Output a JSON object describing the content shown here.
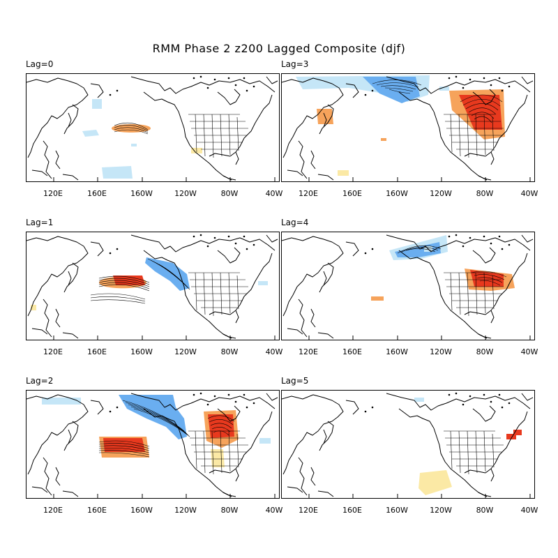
{
  "title": "RMM Phase 2 z200 Lagged Composite (djf)",
  "colors": {
    "positive_light": "#f6a35b",
    "positive_strong": "#e8391e",
    "negative_light": "#c5e6f7",
    "negative_strong": "#6aaef0",
    "weak_positive": "#fbe9a5",
    "coast": "#000000"
  },
  "chart_data": [
    {
      "type": "map",
      "panel": "Lag=0",
      "lag": 0,
      "xticks": [
        "120E",
        "160E",
        "160W",
        "120W",
        "80W",
        "40W"
      ],
      "anomalies": [
        {
          "sign": "positive",
          "strength": "light",
          "region": "central North Pacific (~165E-180, 30N)"
        },
        {
          "sign": "negative",
          "strength": "light",
          "region": "western Pacific subtropics"
        },
        {
          "sign": "weak_positive",
          "strength": "light",
          "region": "eastern Pacific subtropics"
        }
      ]
    },
    {
      "type": "map",
      "panel": "Lag=1",
      "lag": 1,
      "xticks": [
        "120E",
        "160E",
        "160W",
        "120W",
        "80W",
        "40W"
      ],
      "anomalies": [
        {
          "sign": "positive",
          "strength": "strong",
          "region": "central North Pacific (~160E-170W, 35N)"
        },
        {
          "sign": "negative",
          "strength": "strong",
          "region": "Gulf of Alaska to western North America"
        },
        {
          "sign": "negative",
          "strength": "light",
          "region": "western Atlantic"
        }
      ]
    },
    {
      "type": "map",
      "panel": "Lag=2",
      "lag": 2,
      "xticks": [
        "120E",
        "160E",
        "160W",
        "120W",
        "80W",
        "40W"
      ],
      "anomalies": [
        {
          "sign": "positive",
          "strength": "strong",
          "region": "central North Pacific (~160E-160W, 30N)"
        },
        {
          "sign": "negative",
          "strength": "strong",
          "region": "Alaska to western North America"
        },
        {
          "sign": "positive",
          "strength": "strong",
          "region": "Great Lakes / eastern North America"
        },
        {
          "sign": "negative",
          "strength": "light",
          "region": "western Atlantic"
        }
      ]
    },
    {
      "type": "map",
      "panel": "Lag=3",
      "lag": 3,
      "xticks": [
        "120E",
        "160E",
        "160W",
        "120W",
        "80W",
        "40W"
      ],
      "anomalies": [
        {
          "sign": "negative",
          "strength": "strong",
          "region": "Bering Sea / Alaska"
        },
        {
          "sign": "positive",
          "strength": "strong",
          "region": "Hudson Bay / eastern Canada"
        },
        {
          "sign": "positive",
          "strength": "light",
          "region": "East Asia"
        }
      ]
    },
    {
      "type": "map",
      "panel": "Lag=4",
      "lag": 4,
      "xticks": [
        "120E",
        "160E",
        "160W",
        "120W",
        "80W",
        "40W"
      ],
      "anomalies": [
        {
          "sign": "negative",
          "strength": "light",
          "region": "Alaska"
        },
        {
          "sign": "positive",
          "strength": "strong",
          "region": "eastern North America"
        }
      ]
    },
    {
      "type": "map",
      "panel": "Lag=5",
      "lag": 5,
      "xticks": [
        "120E",
        "160E",
        "160W",
        "120W",
        "80W",
        "40W"
      ],
      "anomalies": [
        {
          "sign": "positive",
          "strength": "strong",
          "region": "western Atlantic"
        },
        {
          "sign": "weak_positive",
          "strength": "light",
          "region": "eastern tropical Pacific"
        }
      ]
    }
  ]
}
